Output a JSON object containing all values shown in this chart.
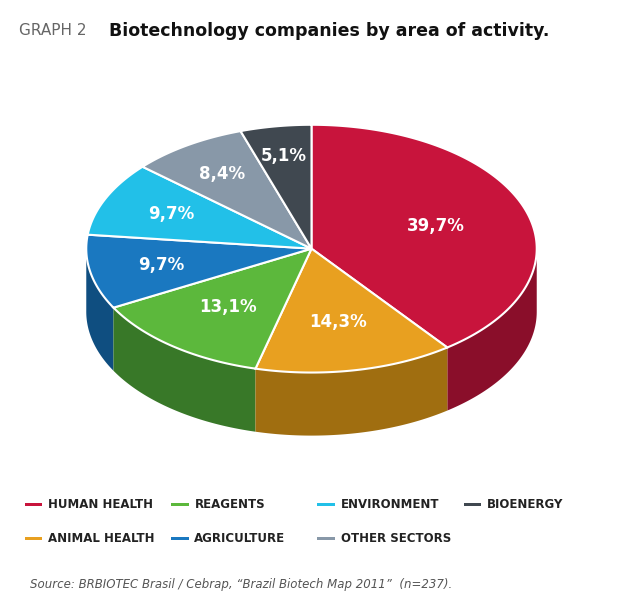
{
  "title_prefix": "GRAPH 2",
  "title_main": "Biotechnology companies by area of activity.",
  "slices": [
    {
      "label": "HUMAN HEALTH",
      "value": 39.7,
      "color": "#c8143c",
      "shadow_color": "#8a0e2a"
    },
    {
      "label": "ANIMAL HEALTH",
      "value": 14.3,
      "color": "#e8a020",
      "shadow_color": "#a06e10"
    },
    {
      "label": "REAGENTS",
      "value": 13.1,
      "color": "#5cb83c",
      "shadow_color": "#387828"
    },
    {
      "label": "AGRICULTURE",
      "value": 9.7,
      "color": "#1a78c0",
      "shadow_color": "#0f4e80"
    },
    {
      "label": "ENVIRONMENT",
      "value": 9.7,
      "color": "#22c0e8",
      "shadow_color": "#1488a8"
    },
    {
      "label": "OTHER SECTORS",
      "value": 8.4,
      "color": "#8898a8",
      "shadow_color": "#586878"
    },
    {
      "label": "BIOENERGY",
      "value": 5.1,
      "color": "#404850",
      "shadow_color": "#282e32"
    }
  ],
  "legend_items": [
    {
      "label": "HUMAN HEALTH",
      "color": "#c8143c"
    },
    {
      "label": "REAGENTS",
      "color": "#5cb83c"
    },
    {
      "label": "ENVIRONMENT",
      "color": "#22c0e8"
    },
    {
      "label": "BIOENERGY",
      "color": "#404850"
    },
    {
      "label": "ANIMAL HEALTH",
      "color": "#e8a020"
    },
    {
      "label": "AGRICULTURE",
      "color": "#1a78c0"
    },
    {
      "label": "OTHER SECTORS",
      "color": "#8898a8"
    }
  ],
  "source_text": "Source: BRBIOTEC Brasil / Cebrap, “Brazil Biotech Map 2011”  (n=237).",
  "bg_color": "#ffffff",
  "label_color": "#ffffff",
  "label_fontsize": 12
}
